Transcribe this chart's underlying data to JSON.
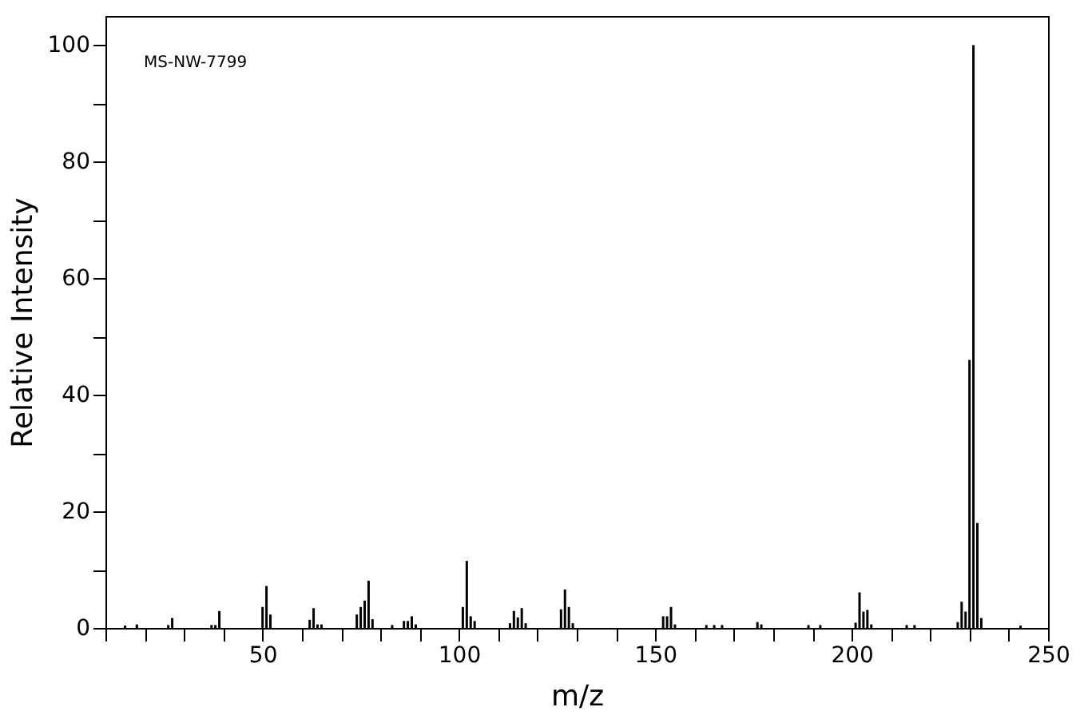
{
  "chart_data": {
    "type": "bar",
    "xlabel": "m/z",
    "ylabel": "Relative Intensity",
    "annotations": [
      "MS-NW-7799"
    ],
    "x": [
      15,
      18,
      26,
      27,
      37,
      38,
      39,
      50,
      51,
      52,
      62,
      63,
      64,
      65,
      74,
      75,
      76,
      77,
      78,
      83,
      86,
      87,
      88,
      89,
      101,
      102,
      103,
      104,
      113,
      114,
      115,
      116,
      117,
      126,
      127,
      128,
      129,
      152,
      153,
      154,
      155,
      163,
      165,
      167,
      176,
      177,
      189,
      192,
      201,
      202,
      203,
      204,
      205,
      214,
      216,
      227,
      228,
      229,
      230,
      231,
      232,
      233,
      243
    ],
    "values": [
      0.4,
      0.6,
      0.5,
      1.7,
      0.5,
      0.5,
      2.9,
      3.6,
      7.2,
      2.3,
      1.4,
      3.4,
      0.6,
      0.6,
      2.3,
      3.6,
      4.7,
      8.1,
      1.5,
      0.5,
      1.2,
      1.2,
      2,
      0.6,
      3.6,
      11.5,
      2,
      1.2,
      0.8,
      2.9,
      1.8,
      3.4,
      0.8,
      3.2,
      6.6,
      3.6,
      0.8,
      2,
      2,
      3.6,
      0.6,
      0.5,
      0.5,
      0.5,
      1,
      0.6,
      0.5,
      0.5,
      0.9,
      6.1,
      2.8,
      3.1,
      0.6,
      0.5,
      0.5,
      1,
      4.5,
      2.8,
      46,
      100,
      18,
      1.7,
      0.4
    ],
    "color": "#000000",
    "xlim": [
      10,
      250
    ],
    "xticks": [
      {
        "value": 10,
        "label": null
      },
      {
        "value": 20,
        "label": null
      },
      {
        "value": 30,
        "label": null
      },
      {
        "value": 40,
        "label": null
      },
      50,
      {
        "value": 60,
        "label": null
      },
      {
        "value": 70,
        "label": null
      },
      {
        "value": 80,
        "label": null
      },
      {
        "value": 90,
        "label": null
      },
      100,
      {
        "value": 110,
        "label": null
      },
      {
        "value": 120,
        "label": null
      },
      {
        "value": 130,
        "label": null
      },
      {
        "value": 140,
        "label": null
      },
      150,
      {
        "value": 160,
        "label": null
      },
      {
        "value": 170,
        "label": null
      },
      {
        "value": 180,
        "label": null
      },
      {
        "value": 190,
        "label": null
      },
      200,
      {
        "value": 210,
        "label": null
      },
      {
        "value": 220,
        "label": null
      },
      {
        "value": 230,
        "label": null
      },
      {
        "value": 240,
        "label": null
      },
      250
    ],
    "ylim": [
      0,
      105
    ],
    "yticks": [
      0,
      {
        "value": 10,
        "label": null
      },
      20,
      {
        "value": 30,
        "label": null
      },
      40,
      {
        "value": 50,
        "label": null
      },
      60,
      {
        "value": 70,
        "label": null
      },
      80,
      {
        "value": 90,
        "label": null
      },
      100
    ],
    "grid": false
  }
}
